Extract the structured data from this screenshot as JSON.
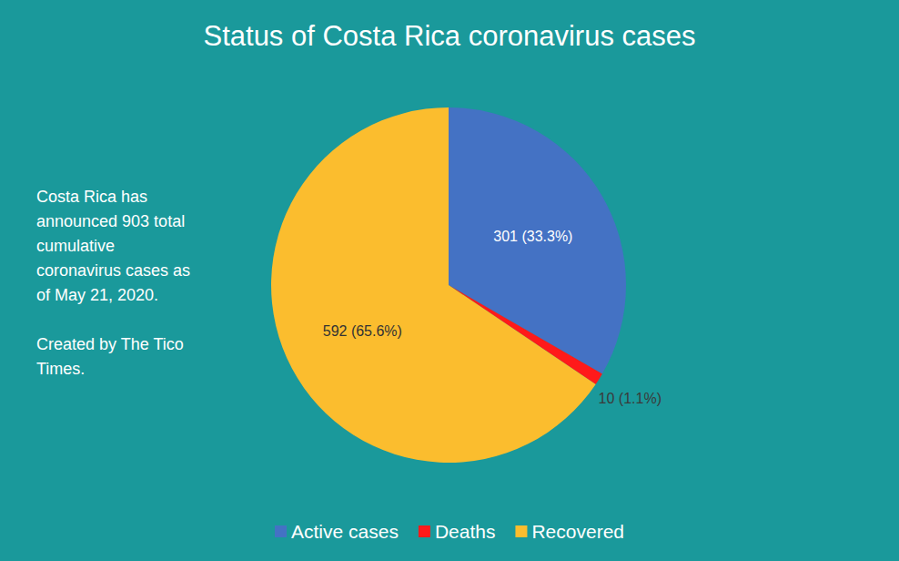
{
  "chart_data": {
    "type": "pie",
    "title": "Status of Costa Rica coronavirus cases",
    "categories": [
      "Active cases",
      "Deaths",
      "Recovered"
    ],
    "values": [
      301,
      10,
      592
    ],
    "value_labels": [
      "301 (33.3%)",
      "10 (1.1%)",
      "592 (65.6%)"
    ],
    "colors": [
      "#4472c4",
      "#ff1a1a",
      "#fbbd2e"
    ],
    "data_labels": true,
    "legend": "bottom",
    "annotations": [
      "Costa Rica has announced 903 total cumulative coronavirus cases as of May 21, 2020.",
      "Created by The Tico Times."
    ]
  }
}
